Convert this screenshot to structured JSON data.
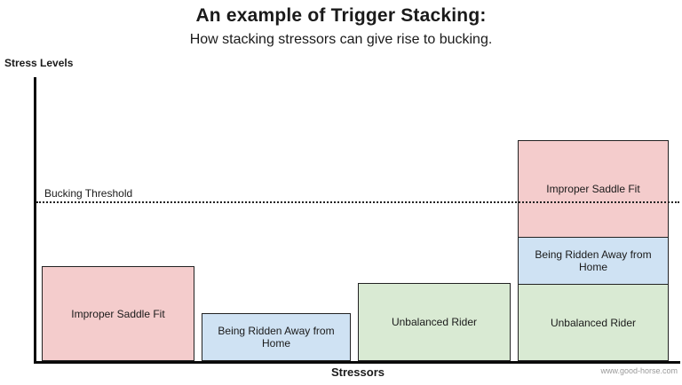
{
  "chart_data": {
    "type": "bar",
    "stacked": true,
    "title": "An example of Trigger Stacking:",
    "subtitle": "How stacking stressors can give rise to bucking.",
    "xlabel": "Stressors",
    "ylabel": "Stress Levels",
    "ylim": [
      0,
      320
    ],
    "grid": false,
    "legend": "none",
    "threshold": {
      "label": "Bucking Threshold",
      "value": 180
    },
    "bars": [
      {
        "segments": [
          {
            "label": "Improper Saddle Fit",
            "color": "#f4cccc",
            "value": 107
          }
        ]
      },
      {
        "segments": [
          {
            "label": "Being Ridden Away from Home",
            "color": "#cfe2f3",
            "value": 54
          }
        ]
      },
      {
        "segments": [
          {
            "label": "Unbalanced Rider",
            "color": "#d9ead3",
            "value": 88
          }
        ]
      },
      {
        "segments": [
          {
            "label": "Unbalanced Rider",
            "color": "#d9ead3",
            "value": 87
          },
          {
            "label": "Being Ridden Away from Home",
            "color": "#cfe2f3",
            "value": 54
          },
          {
            "label": "Improper Saddle Fit",
            "color": "#f4cccc",
            "value": 110
          }
        ]
      }
    ],
    "colors": {
      "improper_saddle_fit": "#f4cccc",
      "being_ridden_away_from_home": "#cfe2f3",
      "unbalanced_rider": "#d9ead3"
    },
    "watermark": "www.good-horse.com"
  }
}
